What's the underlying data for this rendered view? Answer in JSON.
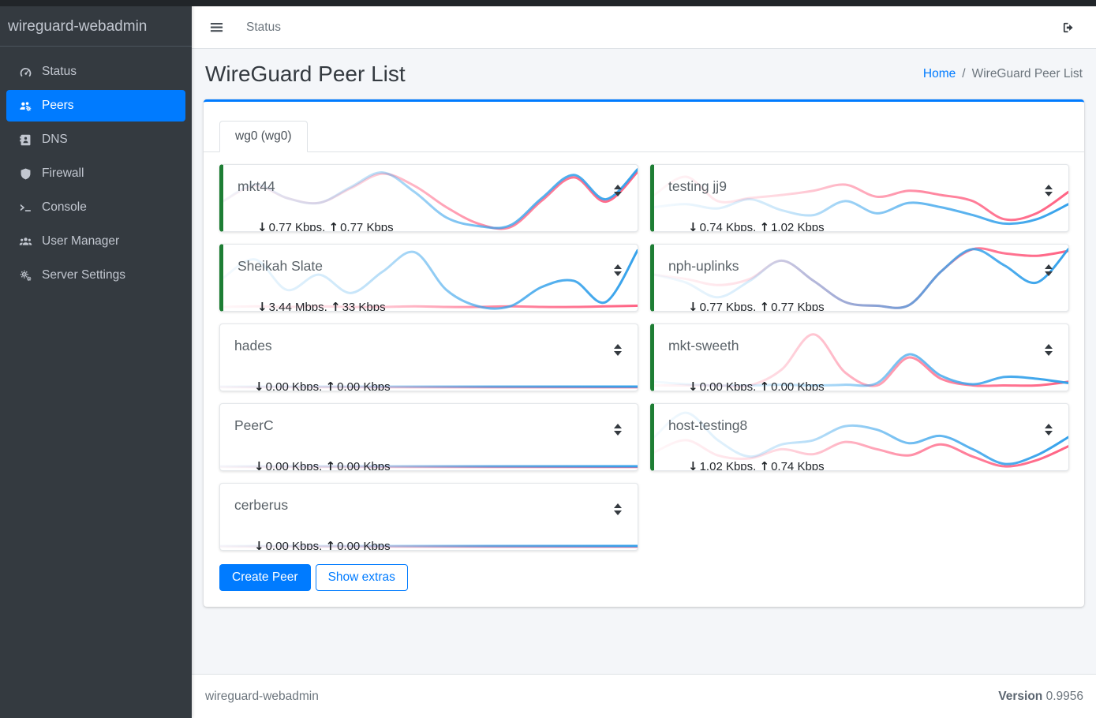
{
  "app": {
    "brand": "wireguard-webadmin",
    "footer_left": "wireguard-webadmin",
    "version_label": "Version",
    "version_value": "0.9956"
  },
  "navbar": {
    "status_link": "Status"
  },
  "sidebar": {
    "items": [
      {
        "label": "Status",
        "icon": "gauge-icon",
        "active": false
      },
      {
        "label": "Peers",
        "icon": "users-gear-icon",
        "active": true
      },
      {
        "label": "DNS",
        "icon": "address-book-icon",
        "active": false
      },
      {
        "label": "Firewall",
        "icon": "shield-icon",
        "active": false
      },
      {
        "label": "Console",
        "icon": "terminal-icon",
        "active": false
      },
      {
        "label": "User Manager",
        "icon": "users-icon",
        "active": false
      },
      {
        "label": "Server Settings",
        "icon": "gears-icon",
        "active": false
      }
    ]
  },
  "page": {
    "title": "WireGuard Peer List",
    "breadcrumb": {
      "home": "Home",
      "separator": "/",
      "current": "WireGuard Peer List"
    }
  },
  "tabs": [
    {
      "label": "wg0 (wg0)",
      "active": true
    }
  ],
  "actions": {
    "create_peer": "Create Peer",
    "show_extras": "Show extras"
  },
  "icons": {
    "download_arrow": "↓",
    "upload_arrow": "↑"
  },
  "stats_separator": ", ",
  "colors": {
    "accent": "#007bff",
    "online_green": "#1e7e34",
    "chart_blue": "#36a2eb",
    "chart_pink": "#ff6384",
    "sidebar_bg": "#343a40",
    "content_bg": "#f4f6f9"
  },
  "peers": [
    {
      "name": "mkt44",
      "down": "0.77 Kbps",
      "up": "0.77 Kbps",
      "online": true,
      "column": "left",
      "spark": {
        "rx": [
          0.45,
          0.72,
          0.5,
          0.42,
          0.68,
          0.92,
          0.6,
          0.18,
          0.04,
          0.05,
          0.5,
          0.88,
          0.48,
          0.97
        ],
        "tx": [
          0.45,
          0.7,
          0.5,
          0.42,
          0.66,
          0.9,
          0.7,
          0.35,
          0.08,
          0.02,
          0.46,
          0.84,
          0.44,
          0.93
        ]
      }
    },
    {
      "name": "Sheikah Slate",
      "down": "3.44 Mbps",
      "up": "33 Kbps",
      "online": true,
      "column": "left",
      "spark": {
        "rx": [
          0.5,
          0.8,
          0.3,
          0.55,
          0.25,
          0.6,
          0.92,
          0.3,
          0.03,
          0.03,
          0.35,
          0.45,
          0.1,
          0.95
        ],
        "tx": [
          0.02,
          0.03,
          0.02,
          0.03,
          0.02,
          0.02,
          0.03,
          0.02,
          0.02,
          0.03,
          0.02,
          0.02,
          0.03,
          0.04
        ]
      }
    },
    {
      "name": "hades",
      "down": "0.00 Kbps",
      "up": "0.00 Kbps",
      "online": false,
      "column": "left",
      "spark": {
        "rx": [
          0.02,
          0.02,
          0.02,
          0.02,
          0.02,
          0.02,
          0.02,
          0.02,
          0.02,
          0.02,
          0.02,
          0.02,
          0.02,
          0.02
        ],
        "tx": [
          0.01,
          0.01,
          0.01,
          0.01,
          0.01,
          0.01,
          0.01,
          0.01,
          0.01,
          0.01,
          0.01,
          0.01,
          0.01,
          0.01
        ]
      }
    },
    {
      "name": "PeerC",
      "down": "0.00 Kbps",
      "up": "0.00 Kbps",
      "online": false,
      "column": "left",
      "spark": {
        "rx": [
          0.02,
          0.02,
          0.02,
          0.02,
          0.02,
          0.02,
          0.02,
          0.02,
          0.02,
          0.02,
          0.02,
          0.02,
          0.02,
          0.02
        ],
        "tx": [
          0.01,
          0.01,
          0.01,
          0.01,
          0.01,
          0.01,
          0.01,
          0.01,
          0.01,
          0.01,
          0.01,
          0.01,
          0.01,
          0.01
        ]
      }
    },
    {
      "name": "cerberus",
      "down": "0.00 Kbps",
      "up": "0.00 Kbps",
      "online": false,
      "column": "left",
      "spark": {
        "rx": [
          0.02,
          0.02,
          0.02,
          0.02,
          0.02,
          0.02,
          0.02,
          0.02,
          0.02,
          0.02,
          0.02,
          0.02,
          0.02,
          0.02
        ],
        "tx": [
          0.01,
          0.01,
          0.01,
          0.01,
          0.01,
          0.01,
          0.01,
          0.01,
          0.01,
          0.01,
          0.01,
          0.01,
          0.01,
          0.01
        ]
      }
    },
    {
      "name": "testing jj9",
      "down": "0.74 Kbps",
      "up": "1.02 Kbps",
      "online": true,
      "column": "right",
      "spark": {
        "rx": [
          0.35,
          0.4,
          0.33,
          0.48,
          0.3,
          0.22,
          0.45,
          0.25,
          0.42,
          0.35,
          0.22,
          0.08,
          0.15,
          0.4
        ],
        "tx": [
          0.55,
          0.85,
          0.45,
          0.5,
          0.55,
          0.62,
          0.72,
          0.52,
          0.62,
          0.55,
          0.45,
          0.15,
          0.25,
          0.6
        ]
      }
    },
    {
      "name": "nph-uplinks",
      "down": "0.77 Kbps",
      "up": "0.77 Kbps",
      "online": true,
      "column": "right",
      "spark": {
        "rx": [
          0.55,
          0.42,
          0.18,
          0.45,
          0.78,
          0.45,
          0.1,
          0.04,
          0.05,
          0.6,
          0.97,
          0.7,
          0.42,
          0.97
        ],
        "tx": [
          0.55,
          0.48,
          0.38,
          0.48,
          0.78,
          0.45,
          0.1,
          0.04,
          0.05,
          0.6,
          0.97,
          0.9,
          0.86,
          0.94
        ]
      }
    },
    {
      "name": "mkt-sweeth",
      "down": "0.00 Kbps",
      "up": "0.00 Kbps",
      "online": true,
      "column": "right",
      "spark": {
        "rx": [
          0.1,
          0.06,
          0.04,
          0.04,
          0.05,
          0.04,
          0.05,
          0.08,
          0.55,
          0.2,
          0.06,
          0.18,
          0.15,
          0.08
        ],
        "tx": [
          0.04,
          0.04,
          0.04,
          0.04,
          0.3,
          0.88,
          0.25,
          0.04,
          0.5,
          0.15,
          0.04,
          0.04,
          0.04,
          0.1
        ]
      }
    },
    {
      "name": "host-testing8",
      "down": "1.02 Kbps",
      "up": "0.74 Kbps",
      "online": true,
      "column": "right",
      "spark": {
        "rx": [
          0.5,
          0.9,
          0.45,
          0.18,
          0.38,
          0.45,
          0.68,
          0.62,
          0.4,
          0.52,
          0.3,
          0.06,
          0.2,
          0.5
        ],
        "tx": [
          0.25,
          0.45,
          0.2,
          0.15,
          0.3,
          0.22,
          0.42,
          0.3,
          0.2,
          0.38,
          0.18,
          0.02,
          0.12,
          0.35
        ]
      }
    }
  ]
}
